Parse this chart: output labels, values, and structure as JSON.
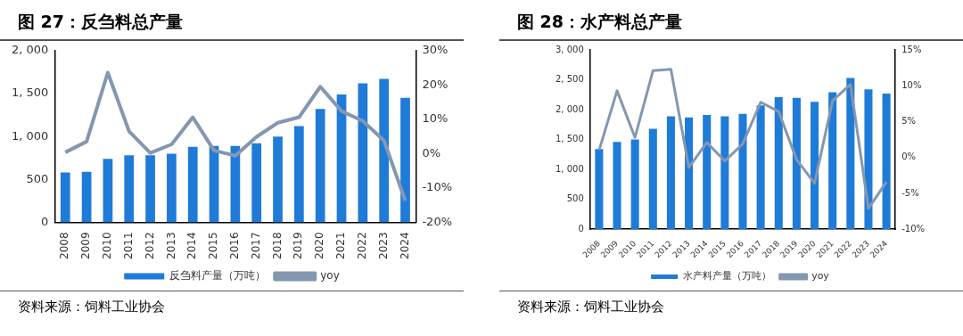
{
  "chart_data": [
    {
      "type": "bar",
      "title": "图 27：反刍料总产量",
      "categories": [
        "2008",
        "2009",
        "2010",
        "2011",
        "2012",
        "2013",
        "2014",
        "2015",
        "2016",
        "2017",
        "2018",
        "2019",
        "2020",
        "2021",
        "2022",
        "2023",
        "2024"
      ],
      "series": [
        {
          "name": "反刍料产量（万吨）",
          "color": "#1f7bd8",
          "values": [
            580,
            590,
            740,
            780,
            780,
            800,
            880,
            890,
            890,
            920,
            1000,
            1120,
            1320,
            1490,
            1620,
            1670,
            1450
          ]
        },
        {
          "name": "yoy",
          "type": "line",
          "axis": "y2",
          "color": "#8497b0",
          "values": [
            0.4,
            3.5,
            23.6,
            6.5,
            0.2,
            2.7,
            10.6,
            0.9,
            -0.6,
            4.9,
            9,
            10.6,
            19.5,
            12.4,
            9.5,
            3.8,
            -13.7
          ]
        }
      ],
      "ylim": [
        0,
        2000
      ],
      "yticks": [
        0,
        {
          "value": 500,
          "label": "500"
        },
        {
          "value": 1000,
          "label": "1, 000"
        },
        {
          "value": 1500,
          "label": "1, 500"
        },
        {
          "value": 2000,
          "label": "2, 000"
        }
      ],
      "y2lim": [
        -20,
        30
      ],
      "y2ticks": [
        {
          "value": -20,
          "label": "-20%"
        },
        {
          "value": -10,
          "label": "-10%"
        },
        {
          "value": 0,
          "label": "0%"
        },
        {
          "value": 10,
          "label": "10%"
        },
        {
          "value": 20,
          "label": "20%"
        },
        {
          "value": 30,
          "label": "30%"
        }
      ],
      "grid": false,
      "legend": "bottom",
      "marker": "none",
      "line_style": "solid",
      "annotations": [
        "资料来源：饲料工业协会"
      ]
    },
    {
      "type": "bar",
      "title": "图 28：水产料总产量",
      "categories": [
        "2008",
        "2009",
        "2010",
        "2011",
        "2012",
        "2013",
        "2014",
        "2015",
        "2016",
        "2017",
        "2018",
        "2019",
        "2020",
        "2021",
        "2022",
        "2023",
        "2024"
      ],
      "series": [
        {
          "name": "水产料产量（万吨）",
          "color": "#1f7bd8",
          "values": [
            1340,
            1460,
            1500,
            1680,
            1890,
            1870,
            1910,
            1890,
            1930,
            2070,
            2210,
            2200,
            2130,
            2290,
            2530,
            2340,
            2270
          ]
        },
        {
          "name": "yoy",
          "type": "line",
          "axis": "y2",
          "color": "#8497b0",
          "values": [
            1.0,
            9.3,
            2.8,
            12.1,
            12.3,
            -1.4,
            2.1,
            -0.5,
            1.9,
            7.7,
            6.4,
            -0.3,
            -3.6,
            7.9,
            10.2,
            -7.1,
            -3.4
          ]
        }
      ],
      "ylim": [
        0,
        3000
      ],
      "yticks": [
        0,
        {
          "value": 500,
          "label": "500"
        },
        {
          "value": 1000,
          "label": "1, 000"
        },
        {
          "value": 1500,
          "label": "1, 500"
        },
        {
          "value": 2000,
          "label": "2, 000"
        },
        {
          "value": 2500,
          "label": "2, 500"
        },
        {
          "value": 3000,
          "label": "3, 000"
        }
      ],
      "y2lim": [
        -10,
        15
      ],
      "y2ticks": [
        {
          "value": -10,
          "label": "-10%"
        },
        {
          "value": -5,
          "label": "-5%"
        },
        {
          "value": 0,
          "label": "0%"
        },
        {
          "value": 5,
          "label": "5%"
        },
        {
          "value": 10,
          "label": "10%"
        },
        {
          "value": 15,
          "label": "15%"
        }
      ],
      "grid": false,
      "legend": "bottom",
      "marker": "none",
      "line_style": "solid",
      "annotations": [
        "资料来源：饲料工业协会"
      ]
    }
  ]
}
